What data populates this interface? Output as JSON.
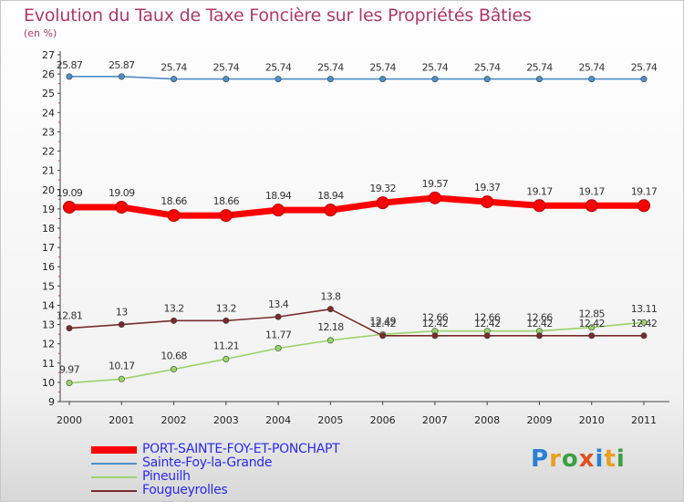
{
  "title": "Evolution du Taux de Taxe Foncière sur les Propriétés Bâties",
  "subtitle": "(en %)",
  "logo": {
    "text": "Proxiti",
    "colors": [
      "#2a7fd4",
      "#e8a020",
      "#3aa040",
      "#e05020",
      "#2a7fd4",
      "#e8a020",
      "#3aa040"
    ]
  },
  "chart_data": {
    "type": "line",
    "title": "Evolution du Taux de Taxe Foncière sur les Propriétés Bâties",
    "ylabel": "(en %)",
    "xlabel": "",
    "ylim": [
      9,
      27
    ],
    "yticks": [
      9,
      10,
      11,
      12,
      13,
      14,
      15,
      16,
      17,
      18,
      19,
      20,
      21,
      22,
      23,
      24,
      25,
      26,
      27
    ],
    "categories": [
      "2000",
      "2001",
      "2002",
      "2003",
      "2004",
      "2005",
      "2006",
      "2007",
      "2008",
      "2009",
      "2010",
      "2011"
    ],
    "legend_position": "bottom-left",
    "series": [
      {
        "name": "PORT-SAINTE-FOY-ET-PONCHAPT",
        "color": "#ff0000",
        "values": [
          19.09,
          19.09,
          18.66,
          18.66,
          18.94,
          18.94,
          19.32,
          19.57,
          19.37,
          19.17,
          19.17,
          19.17
        ],
        "labels": [
          "19.09",
          "19.09",
          "18.66",
          "18.66",
          "18.94",
          "18.94",
          "19.32",
          "19.57",
          "19.37",
          "19.17",
          "19.17",
          "19.17"
        ]
      },
      {
        "name": "Sainte-Foy-la-Grande",
        "color": "#4d8fc8",
        "values": [
          25.87,
          25.87,
          25.74,
          25.74,
          25.74,
          25.74,
          25.74,
          25.74,
          25.74,
          25.74,
          25.74,
          25.74
        ],
        "labels": [
          "25.87",
          "25.87",
          "25.74",
          "25.74",
          "25.74",
          "25.74",
          "25.74",
          "25.74",
          "25.74",
          "25.74",
          "25.74",
          "25.74"
        ]
      },
      {
        "name": "Pineuilh",
        "color": "#99d36a",
        "values": [
          9.97,
          10.17,
          10.68,
          11.21,
          11.77,
          12.18,
          12.49,
          12.66,
          12.66,
          12.66,
          12.85,
          13.11
        ],
        "labels": [
          "9.97",
          "10.17",
          "10.68",
          "11.21",
          "11.77",
          "12.18",
          "12.49",
          "12.66",
          "12.66",
          "12.66",
          "12.85",
          "13.11"
        ]
      },
      {
        "name": "Fougueyrolles",
        "color": "#7a2a2a",
        "values": [
          12.81,
          13,
          13.2,
          13.2,
          13.4,
          13.8,
          12.42,
          12.42,
          12.42,
          12.42,
          12.42,
          12.42
        ],
        "labels": [
          "12.81",
          "13",
          "13.2",
          "13.2",
          "13.4",
          "13.8",
          "12.42",
          "12.42",
          "12.42",
          "12.42",
          "12.42",
          "12.42"
        ]
      }
    ]
  }
}
